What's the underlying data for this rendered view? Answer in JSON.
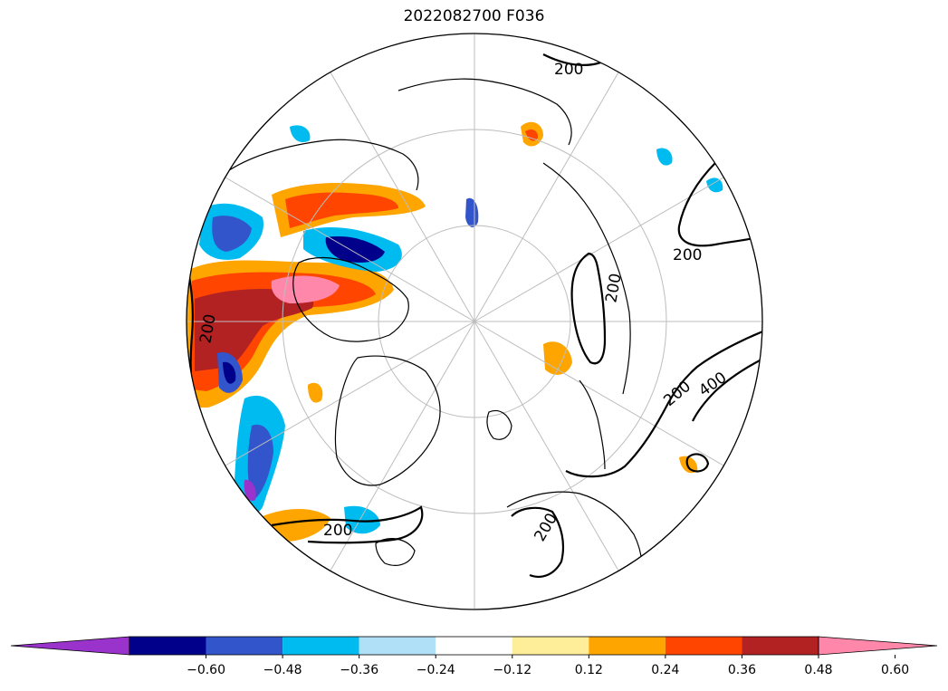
{
  "title": "2022082700 F036",
  "map": {
    "projection": "north-polar-stereographic",
    "graticule_color": "#bdbdbd",
    "coastline_color": "#000000",
    "contour_labels": [
      "200",
      "200",
      "200",
      "200",
      "400",
      "200",
      "200",
      "200"
    ]
  },
  "colorbar": {
    "extend": "both",
    "colors": [
      "#9933cc",
      "#00008b",
      "#3355cc",
      "#00bbf0",
      "#b0e0f8",
      "#ffffff",
      "#ffee99",
      "#ffa500",
      "#ff4500",
      "#b22222",
      "#ff88aa"
    ],
    "ticks": [
      "−0.60",
      "−0.48",
      "−0.36",
      "−0.24",
      "−0.12",
      "0.12",
      "0.24",
      "0.36",
      "0.48",
      "0.60"
    ]
  }
}
